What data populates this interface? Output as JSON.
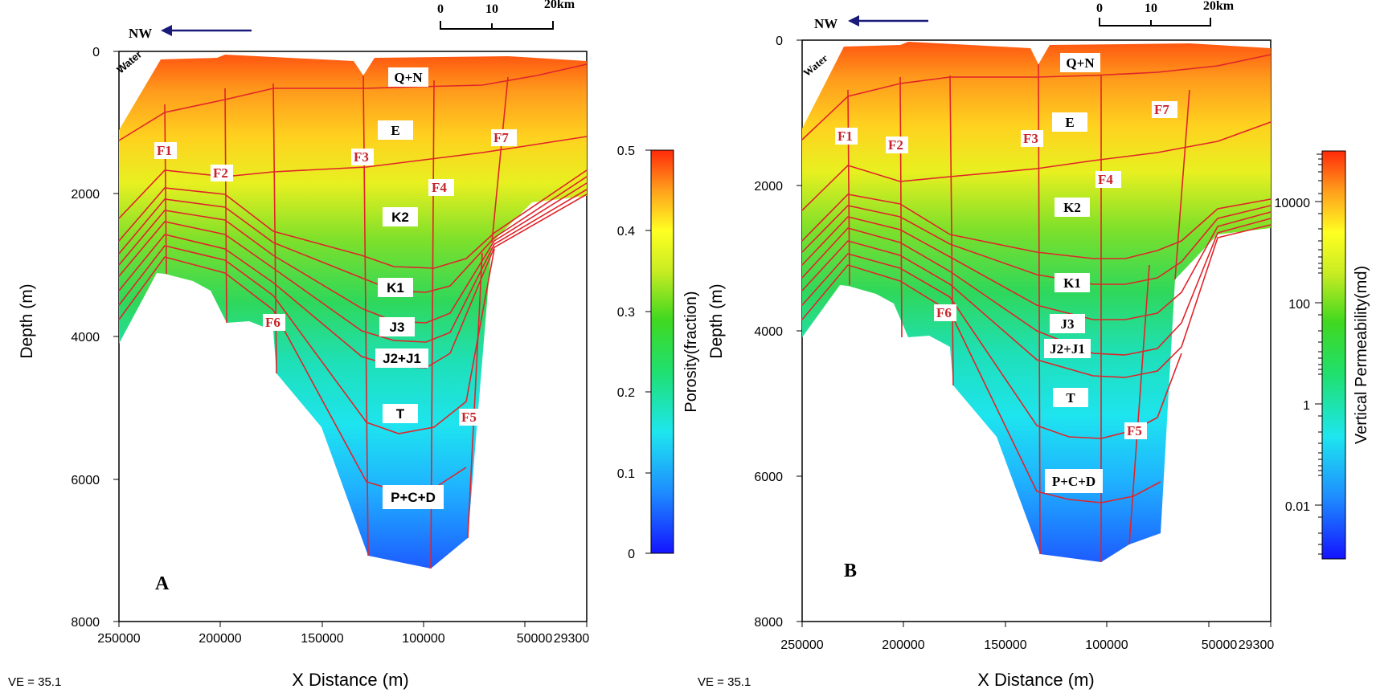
{
  "panels": [
    {
      "id": "A",
      "panel_label": "A",
      "y_axis_label": "Depth (m)",
      "x_axis_label": "X Distance (m)",
      "y_ticks": [
        "0",
        "2000",
        "4000",
        "6000",
        "8000"
      ],
      "x_ticks": [
        "250000",
        "200000",
        "150000",
        "100000",
        "50000",
        "29300"
      ],
      "ve_label": "VE = 35.1",
      "direction_label": "NW",
      "scale_bar": [
        "0",
        "10",
        "20km"
      ],
      "water_label": "Water",
      "faults": [
        "F1",
        "F2",
        "F3",
        "F4",
        "F5",
        "F6",
        "F7"
      ],
      "units": [
        "Q+N",
        "E",
        "K2",
        "K1",
        "J3",
        "J2+J1",
        "T",
        "P+C+D"
      ],
      "colorbar": {
        "label": "Porosity(fraction)",
        "scale": "linear",
        "ticks": [
          "0",
          "0.1",
          "0.2",
          "0.3",
          "0.4",
          "0.5"
        ]
      }
    },
    {
      "id": "B",
      "panel_label": "B",
      "y_axis_label": "Depth (m)",
      "x_axis_label": "X Distance (m)",
      "y_ticks": [
        "0",
        "2000",
        "4000",
        "6000",
        "8000"
      ],
      "x_ticks": [
        "250000",
        "200000",
        "150000",
        "100000",
        "50000",
        "29300"
      ],
      "ve_label": "VE = 35.1",
      "direction_label": "NW",
      "scale_bar": [
        "0",
        "10",
        "20km"
      ],
      "water_label": "Water",
      "faults": [
        "F1",
        "F2",
        "F3",
        "F4",
        "F5",
        "F6",
        "F7"
      ],
      "units": [
        "Q+N",
        "E",
        "K2",
        "K1",
        "J3",
        "J2+J1",
        "T",
        "P+C+D"
      ],
      "colorbar": {
        "label": "Vertical Permeability(md)",
        "scale": "log",
        "ticks": [
          "10000",
          "100",
          "1",
          "0.01"
        ]
      }
    }
  ],
  "colors": {
    "fault_line": "#e0242a",
    "fault_label": "#c8232a",
    "arrow": "#1a1a7a",
    "ramp": [
      "#1a33ff",
      "#22a0ff",
      "#1ee6f0",
      "#1fe07a",
      "#2bd92b",
      "#a8e62a",
      "#ffff22",
      "#ffb020",
      "#ff6a10",
      "#ff3a0a"
    ]
  }
}
